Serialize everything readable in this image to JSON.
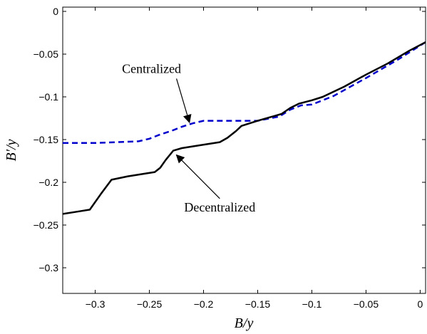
{
  "chart_data": {
    "type": "line",
    "title": "",
    "xlabel": "B/y",
    "ylabel": "B′/y",
    "xlim": [
      -0.33,
      0.005
    ],
    "ylim": [
      -0.33,
      0.005
    ],
    "x_ticks": [
      -0.3,
      -0.25,
      -0.2,
      -0.15,
      -0.1,
      -0.05,
      0
    ],
    "x_tick_labels": [
      "−0.3",
      "−0.25",
      "−0.2",
      "−0.15",
      "−0.1",
      "−0.05",
      "0"
    ],
    "y_ticks": [
      0,
      -0.05,
      -0.1,
      -0.15,
      -0.2,
      -0.25,
      -0.3
    ],
    "y_tick_labels": [
      "0",
      "−0.05",
      "−0.1",
      "−0.15",
      "−0.2",
      "−0.25",
      "−0.3"
    ],
    "grid": false,
    "legend": "none",
    "series": [
      {
        "style": "dashed",
        "color": "#0000cc",
        "x": [
          -0.33,
          -0.3,
          -0.26,
          -0.25,
          -0.24,
          -0.23,
          -0.22,
          -0.21,
          -0.2,
          -0.19,
          -0.17,
          -0.15,
          -0.13,
          -0.12,
          -0.11,
          -0.1,
          -0.08,
          -0.05,
          -0.02,
          0.005
        ],
        "y": [
          -0.154,
          -0.154,
          -0.152,
          -0.149,
          -0.144,
          -0.14,
          -0.135,
          -0.131,
          -0.128,
          -0.128,
          -0.128,
          -0.128,
          -0.123,
          -0.115,
          -0.11,
          -0.109,
          -0.099,
          -0.078,
          -0.056,
          -0.036
        ]
      },
      {
        "style": "solid",
        "color": "#000000",
        "x": [
          -0.33,
          -0.315,
          -0.305,
          -0.295,
          -0.285,
          -0.27,
          -0.255,
          -0.245,
          -0.24,
          -0.235,
          -0.228,
          -0.22,
          -0.205,
          -0.185,
          -0.178,
          -0.17,
          -0.165,
          -0.15,
          -0.128,
          -0.12,
          -0.112,
          -0.1,
          -0.09,
          -0.07,
          -0.05,
          -0.03,
          -0.01,
          0.005
        ],
        "y": [
          -0.237,
          -0.234,
          -0.232,
          -0.214,
          -0.197,
          -0.193,
          -0.19,
          -0.188,
          -0.183,
          -0.174,
          -0.163,
          -0.16,
          -0.157,
          -0.153,
          -0.148,
          -0.14,
          -0.134,
          -0.128,
          -0.12,
          -0.113,
          -0.108,
          -0.104,
          -0.1,
          -0.088,
          -0.074,
          -0.061,
          -0.046,
          -0.036
        ]
      }
    ],
    "annotations": [
      {
        "text": "Centralized",
        "x": -0.248,
        "y": -0.072,
        "arrow_to": [
          -0.213,
          -0.13
        ]
      },
      {
        "text": "Decentralized",
        "x": -0.185,
        "y": -0.234,
        "arrow_to": [
          -0.225,
          -0.168
        ]
      }
    ]
  }
}
